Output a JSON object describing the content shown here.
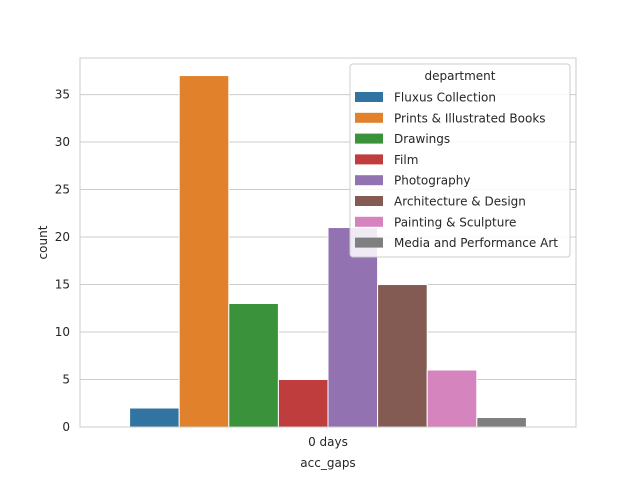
{
  "chart_data": {
    "type": "bar",
    "categories": [
      "0 days"
    ],
    "series": [
      {
        "name": "Fluxus Collection",
        "values": [
          2
        ],
        "color": "#3274a1"
      },
      {
        "name": "Prints & Illustrated Books",
        "values": [
          37
        ],
        "color": "#e1812c"
      },
      {
        "name": "Drawings",
        "values": [
          13
        ],
        "color": "#3a923a"
      },
      {
        "name": "Film",
        "values": [
          5
        ],
        "color": "#c03d3e"
      },
      {
        "name": "Photography",
        "values": [
          21
        ],
        "color": "#9372b2"
      },
      {
        "name": "Architecture & Design",
        "values": [
          15
        ],
        "color": "#845b53"
      },
      {
        "name": "Painting & Sculpture",
        "values": [
          6
        ],
        "color": "#d684bd"
      },
      {
        "name": "Media and Performance Art",
        "values": [
          1
        ],
        "color": "#7f7f7f"
      }
    ],
    "xlabel": "acc_gaps",
    "ylabel": "count",
    "ylim": [
      0,
      38.85
    ],
    "yticks": [
      0,
      5,
      10,
      15,
      20,
      25,
      30,
      35
    ],
    "grid": "horizontal",
    "legend": {
      "title": "department",
      "placement": "top-right"
    }
  }
}
